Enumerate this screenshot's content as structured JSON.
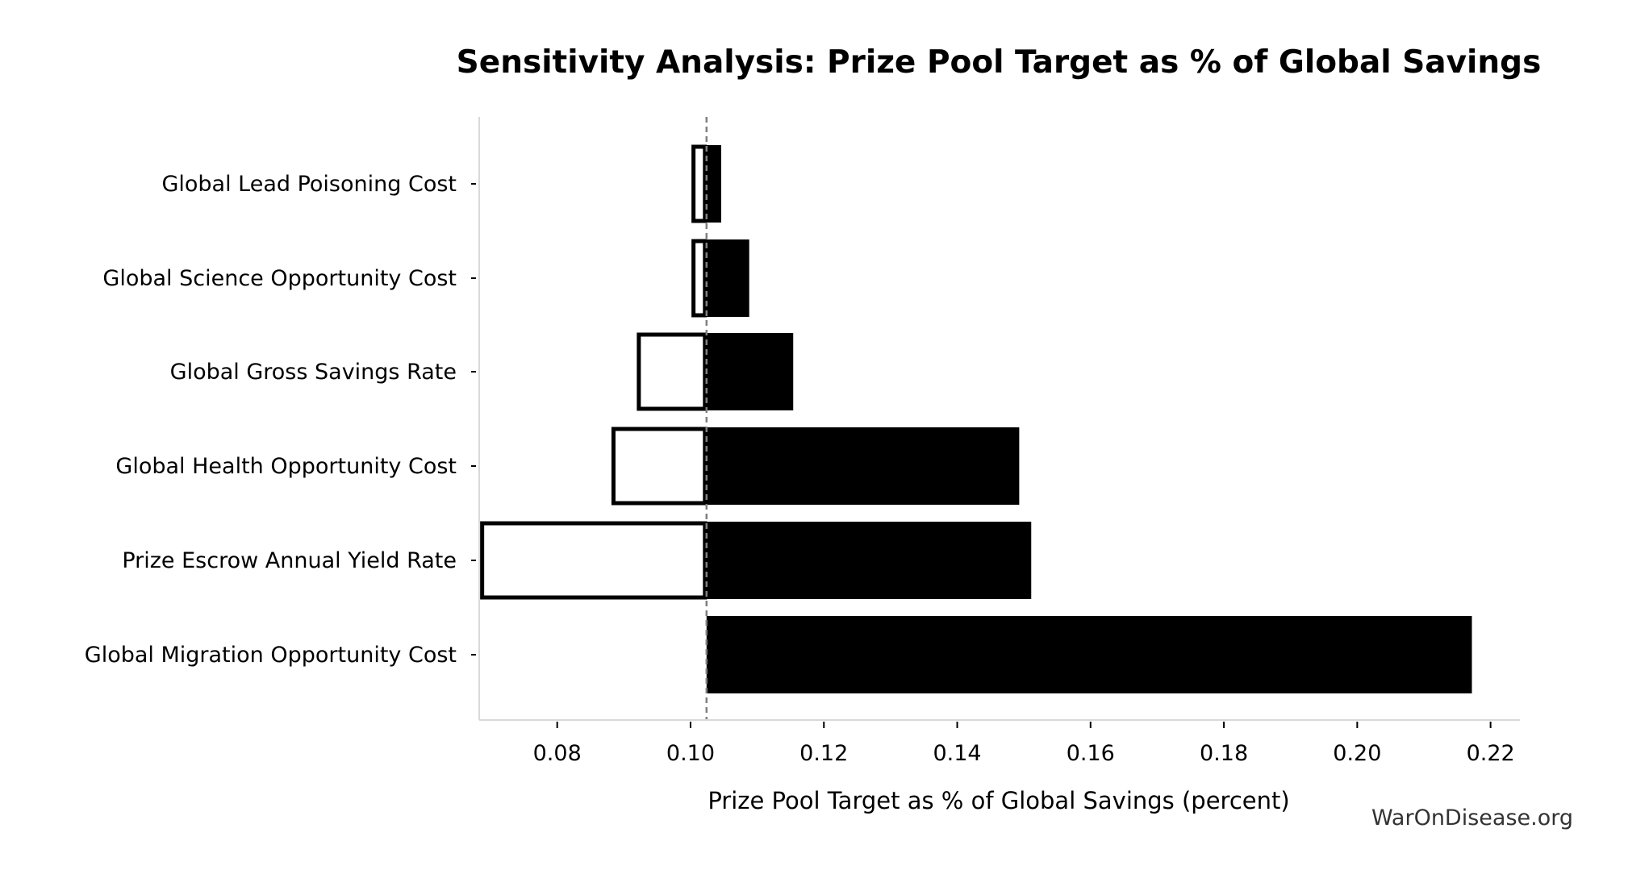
{
  "chart_data": {
    "type": "bar",
    "subtype": "tornado",
    "title": "Sensitivity Analysis: Prize Pool Target as % of Global Savings",
    "xlabel": "Prize Pool Target as % of Global Savings (percent)",
    "ylabel": "",
    "xlim": [
      0.0683,
      0.2244
    ],
    "xticks": [
      0.08,
      0.1,
      0.12,
      0.14,
      0.16,
      0.18,
      0.2,
      0.22
    ],
    "xtick_labels": [
      "0.08",
      "0.10",
      "0.12",
      "0.14",
      "0.16",
      "0.18",
      "0.20",
      "0.22"
    ],
    "baseline": 0.1024,
    "grid": false,
    "categories": [
      "Global Lead Poisoning Cost",
      "Global Science Opportunity Cost",
      "Global Gross Savings Rate",
      "Global Health Opportunity Cost",
      "Prize Escrow Annual Yield Rate",
      "Global Migration Opportunity Cost"
    ],
    "series": [
      {
        "name": "low",
        "style": "outline",
        "values": [
          0.1002,
          0.1002,
          0.092,
          0.0882,
          0.0685,
          0.1024
        ]
      },
      {
        "name": "high",
        "style": "filled",
        "values": [
          0.1046,
          0.1088,
          0.1154,
          0.1493,
          0.1511,
          0.2172
        ]
      }
    ],
    "colors": {
      "high": "#000000",
      "low_fill": "#ffffff",
      "low_edge": "#000000",
      "baseline": "#808080",
      "spine": "#d9d9d9"
    }
  },
  "watermark": "WarOnDisease.org"
}
